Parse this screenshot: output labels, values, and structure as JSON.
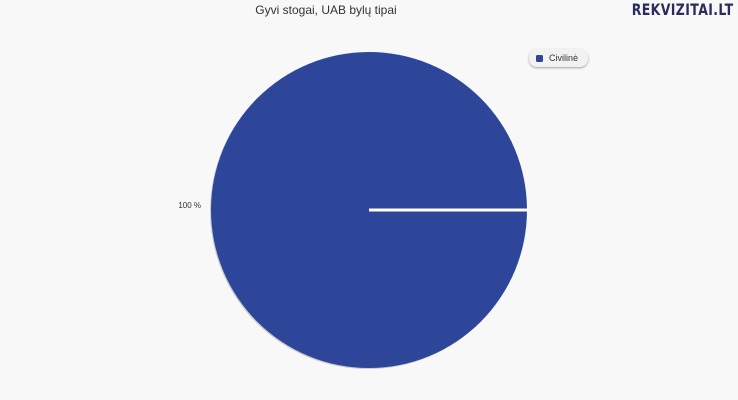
{
  "brand": {
    "name": "REKVIZITAI",
    "suffix": ".LT"
  },
  "chart_data": {
    "type": "pie",
    "title": "Gyvi stogai, UAB bylų tipai",
    "categories": [
      "Civilinė"
    ],
    "values": [
      100
    ],
    "colors": [
      "#2e4699"
    ],
    "data_labels": [
      "100 %"
    ],
    "legend": {
      "placement": "top-right",
      "entries": [
        "Civilinė"
      ]
    }
  }
}
